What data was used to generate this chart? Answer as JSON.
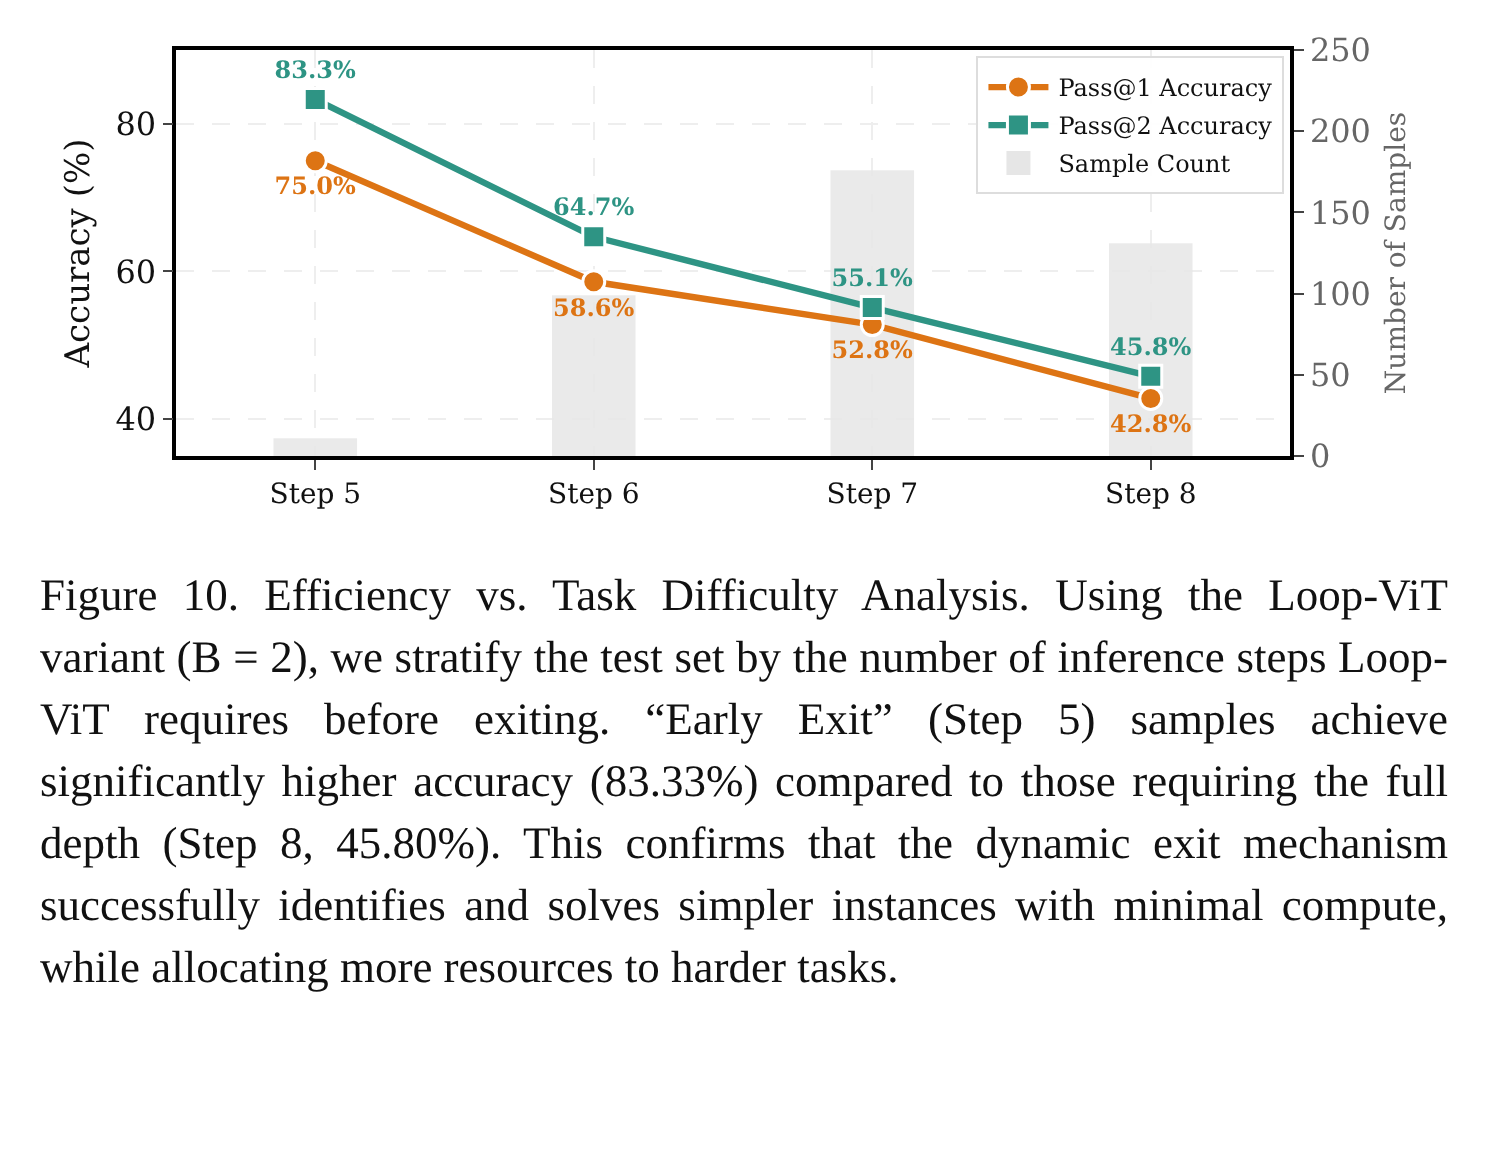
{
  "chart_data": {
    "type": "line",
    "categories": [
      "Step 5",
      "Step 6",
      "Step 7",
      "Step 8"
    ],
    "ylabel": "Accuracy (%)",
    "y2label": "Number of Samples",
    "ylim": [
      35,
      90
    ],
    "yticks": [
      40,
      60,
      80
    ],
    "y2lim": [
      0,
      250
    ],
    "y2ticks": [
      0,
      50,
      100,
      150,
      200,
      250
    ],
    "series": [
      {
        "name": "Pass@1 Accuracy",
        "color": "#dd7414",
        "values": [
          75.0,
          58.6,
          52.8,
          42.8
        ],
        "value_labels": [
          "75.0%",
          "58.6%",
          "52.8%",
          "42.8%"
        ],
        "marker": "circle"
      },
      {
        "name": "Pass@2 Accuracy",
        "color": "#2e9484",
        "values": [
          83.3,
          64.7,
          55.1,
          45.8
        ],
        "value_labels": [
          "83.3%",
          "64.7%",
          "55.1%",
          "45.8%"
        ],
        "marker": "square"
      },
      {
        "name": "Sample Count",
        "type": "bar",
        "axis": "y2",
        "color": "#e6e6e6",
        "values": [
          11,
          99,
          176,
          131
        ]
      }
    ],
    "grid": true,
    "legend": "top right",
    "line_style": "solid",
    "annotations": [
      "Figure 10. Efficiency vs. Task Difficulty Analysis. Using the Loop-ViT variant (B = 2), we stratify the test set by the number of inference steps Loop-ViT requires before exiting. “Early Exit” (Step 5) samples achieve significantly higher accuracy (83.33%) compared to those requiring the full depth (Step 8, 45.80%). This confirms that the dynamic exit mechanism successfully identifies and solves simpler instances with minimal compute, while allocating more resources to harder tasks."
    ]
  }
}
